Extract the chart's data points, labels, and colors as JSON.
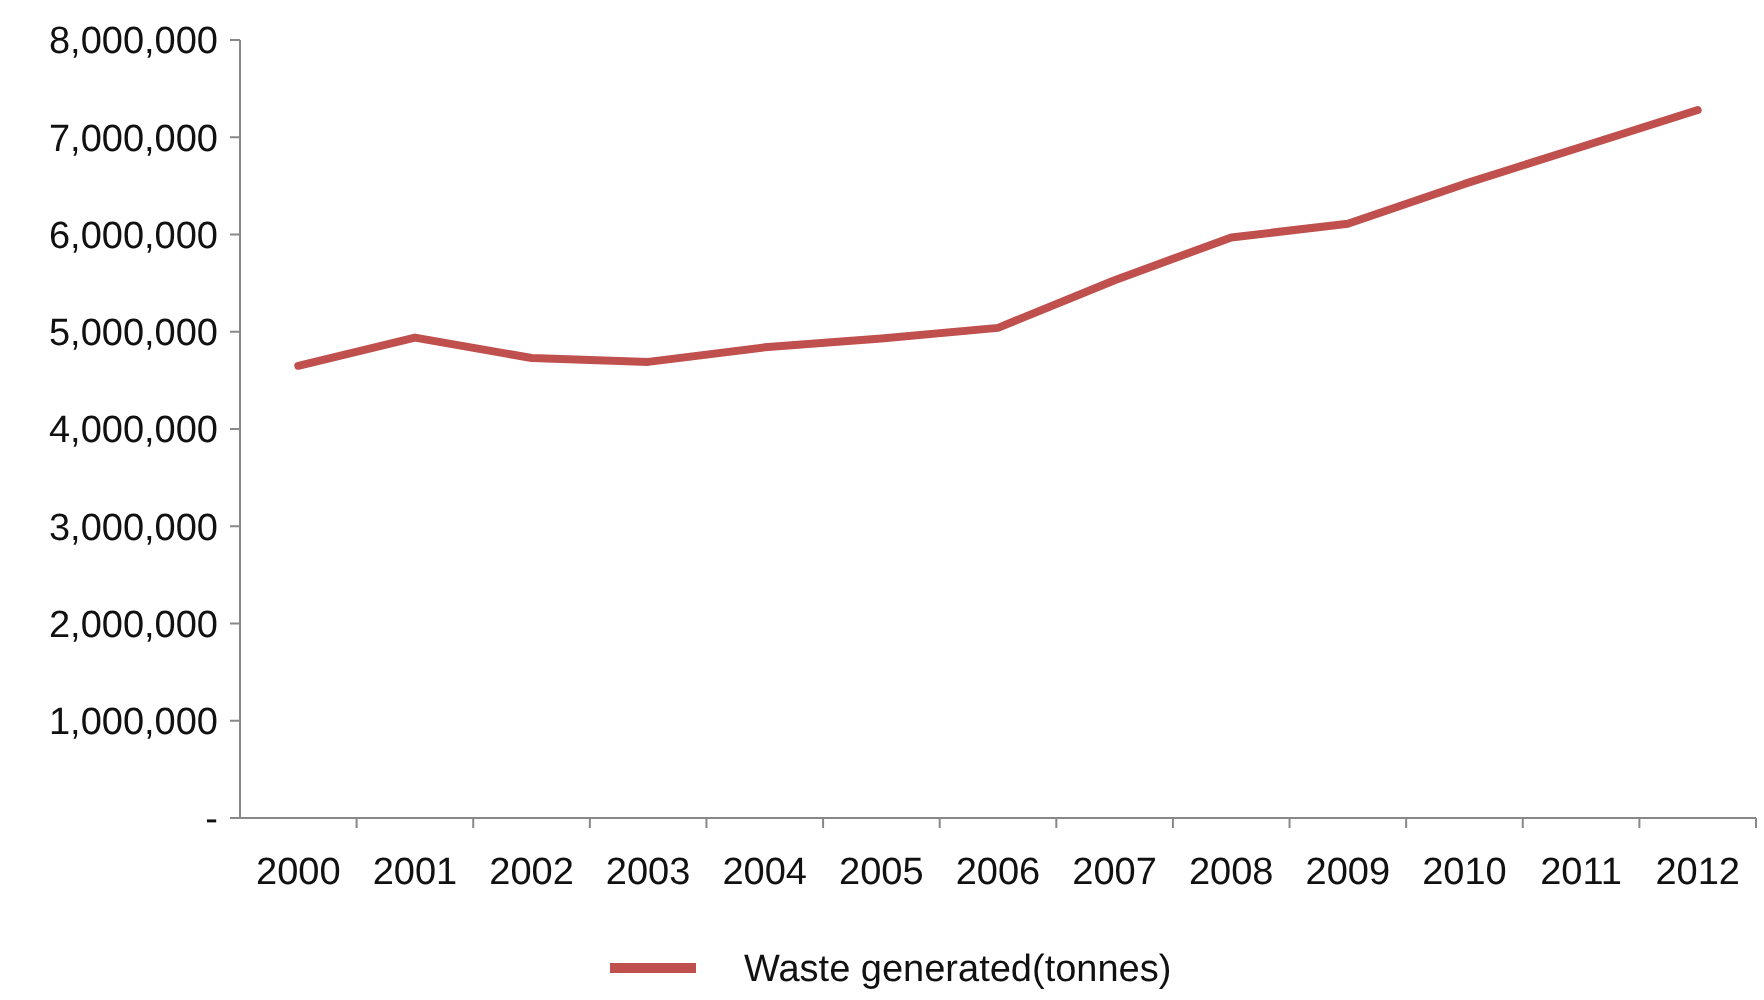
{
  "chart_data": {
    "type": "line",
    "categories": [
      "2000",
      "2001",
      "2002",
      "2003",
      "2004",
      "2005",
      "2006",
      "2007",
      "2008",
      "2009",
      "2010",
      "2011",
      "2012"
    ],
    "series": [
      {
        "name": "Waste generated(tonnes)",
        "color": "#c0504d",
        "values": [
          4650000,
          4940000,
          4730000,
          4690000,
          4840000,
          4930000,
          5040000,
          5530000,
          5970000,
          6110000,
          6520000,
          6900000,
          7280000
        ]
      }
    ],
    "ylim": [
      0,
      8000000
    ],
    "yticks": [
      {
        "value": 0,
        "label": "-"
      },
      {
        "value": 1000000,
        "label": "1,000,000"
      },
      {
        "value": 2000000,
        "label": "2,000,000"
      },
      {
        "value": 3000000,
        "label": "3,000,000"
      },
      {
        "value": 4000000,
        "label": "4,000,000"
      },
      {
        "value": 5000000,
        "label": "5,000,000"
      },
      {
        "value": 6000000,
        "label": "6,000,000"
      },
      {
        "value": 7000000,
        "label": "7,000,000"
      },
      {
        "value": 8000000,
        "label": "8,000,000"
      }
    ],
    "grid": false,
    "legend": "bottom",
    "marker": "none",
    "line_style": "solid"
  }
}
